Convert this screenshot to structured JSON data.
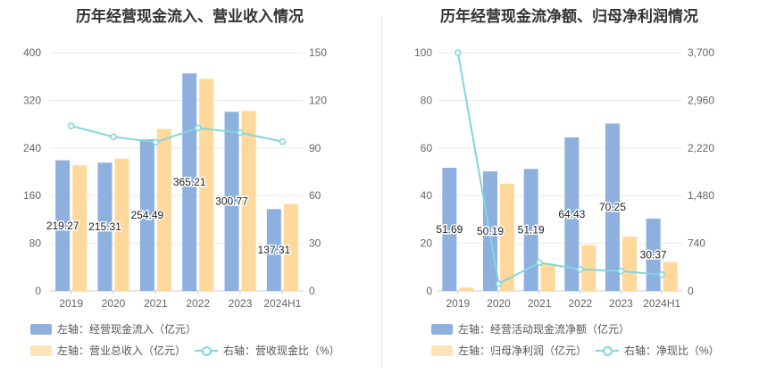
{
  "colors": {
    "blue": "#8eb0de",
    "orange": "#ffd89c",
    "line": "#7fd6de"
  },
  "chart_data": [
    {
      "type": "bar",
      "title": "历年经营现金流入、营业收入情况",
      "categories": [
        "2019",
        "2020",
        "2021",
        "2022",
        "2023",
        "2024H1"
      ],
      "left_axis": {
        "ticks": [
          "0",
          "80",
          "160",
          "240",
          "320",
          "400"
        ],
        "ylim": [
          0,
          400
        ]
      },
      "right_axis": {
        "ticks": [
          "0",
          "30",
          "60",
          "90",
          "120",
          "150"
        ],
        "ylim": [
          0,
          150
        ]
      },
      "series": [
        {
          "name": "左轴：经营现金流入（亿元）",
          "type": "bar",
          "axis": "left",
          "values": [
            219.27,
            215.31,
            254.49,
            365.21,
            300.77,
            137.31
          ],
          "labels": [
            "219.27",
            "215.31",
            "254.49",
            "365.21",
            "300.77",
            "137.31"
          ]
        },
        {
          "name": "左轴：营业总收入（亿元）",
          "type": "bar",
          "axis": "left",
          "values": [
            211,
            222,
            272,
            356,
            302,
            146
          ]
        },
        {
          "name": "右轴：营收现金比（%）",
          "type": "line",
          "axis": "right",
          "values": [
            103.9,
            97.0,
            93.6,
            102.6,
            99.6,
            94.0
          ]
        }
      ]
    },
    {
      "type": "bar",
      "title": "历年经营现金流净额、归母净利润情况",
      "categories": [
        "2019",
        "2020",
        "2021",
        "2022",
        "2023",
        "2024H1"
      ],
      "left_axis": {
        "ticks": [
          "0",
          "20",
          "40",
          "60",
          "80",
          "100"
        ],
        "ylim": [
          0,
          100
        ]
      },
      "right_axis": {
        "ticks": [
          "0",
          "740",
          "1,480",
          "2,220",
          "2,960",
          "3,700"
        ],
        "ylim": [
          0,
          3700
        ]
      },
      "series": [
        {
          "name": "左轴：经营活动现金流净额（亿元）",
          "type": "bar",
          "axis": "left",
          "values": [
            51.69,
            50.19,
            51.19,
            64.43,
            70.25,
            30.37
          ],
          "labels": [
            "51.69",
            "50.19",
            "51.19",
            "64.43",
            "70.25",
            "30.37"
          ]
        },
        {
          "name": "左轴：归母净利润（亿元）",
          "type": "bar",
          "axis": "left",
          "values": [
            1.4,
            45,
            11.5,
            19.2,
            22.8,
            12.1
          ]
        },
        {
          "name": "右轴：净现比（%）",
          "type": "line",
          "axis": "right",
          "values": [
            3700,
            112,
            440,
            335,
            308,
            251
          ]
        }
      ]
    }
  ]
}
